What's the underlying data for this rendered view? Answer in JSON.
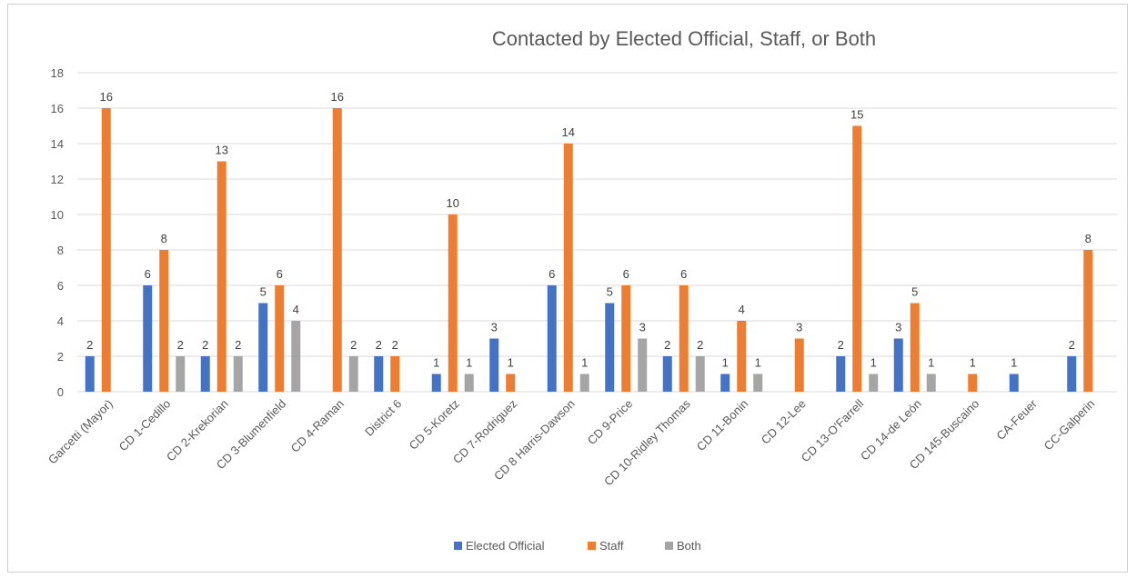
{
  "chart_data": {
    "type": "bar",
    "title": "Contacted by Elected Official, Staff, or Both",
    "xlabel": "",
    "ylabel": "",
    "ylim": [
      0,
      18
    ],
    "yticks": [
      0,
      2,
      4,
      6,
      8,
      10,
      12,
      14,
      16,
      18
    ],
    "grid": true,
    "legend_position": "bottom",
    "categories": [
      "Garcetti (Mayor)",
      "CD 1-Cedillo",
      "CD 2-Krekorian",
      "CD 3-Blumenfield",
      "CD 4-Raman",
      "District 6",
      "CD 5-Koretz",
      "CD 7-Rodriguez",
      "CD 8 Harris-Dawson",
      "CD 9-Price",
      "CD 10-Ridley Thomas",
      "CD 11-Bonin",
      "CD 12-Lee",
      "CD 13-O'Farrell",
      "CD 14-de León",
      "CD 145-Buscaino",
      "CA-Feuer",
      "CC-Galperin"
    ],
    "series": [
      {
        "name": "Elected Official",
        "color": "#4472C4",
        "values": [
          2,
          6,
          2,
          5,
          null,
          2,
          1,
          3,
          6,
          5,
          2,
          1,
          null,
          2,
          3,
          null,
          1,
          2
        ]
      },
      {
        "name": "Staff",
        "color": "#ED7D31",
        "values": [
          16,
          8,
          13,
          6,
          16,
          2,
          10,
          1,
          14,
          6,
          6,
          4,
          3,
          15,
          5,
          1,
          null,
          8
        ]
      },
      {
        "name": "Both",
        "color": "#A5A5A5",
        "values": [
          null,
          2,
          2,
          4,
          2,
          null,
          1,
          null,
          1,
          3,
          2,
          1,
          null,
          1,
          1,
          null,
          null,
          null
        ]
      }
    ]
  }
}
